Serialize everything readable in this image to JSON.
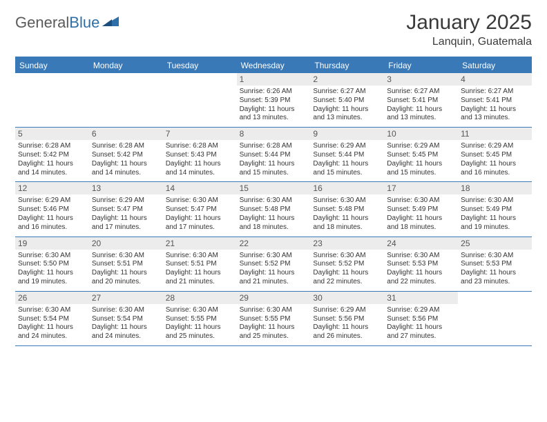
{
  "logo": {
    "word1": "General",
    "word2": "Blue"
  },
  "title": "January 2025",
  "location": "Lanquin, Guatemala",
  "colors": {
    "header_bar": "#3a79b7",
    "daynum_bg": "#ececec",
    "text": "#333333",
    "logo_gray": "#5a5a5a",
    "logo_blue": "#2f6fa8"
  },
  "dow": [
    "Sunday",
    "Monday",
    "Tuesday",
    "Wednesday",
    "Thursday",
    "Friday",
    "Saturday"
  ],
  "weeks": [
    [
      {
        "n": "",
        "sr": "",
        "ss": "",
        "dl": ""
      },
      {
        "n": "",
        "sr": "",
        "ss": "",
        "dl": ""
      },
      {
        "n": "",
        "sr": "",
        "ss": "",
        "dl": ""
      },
      {
        "n": "1",
        "sr": "Sunrise: 6:26 AM",
        "ss": "Sunset: 5:39 PM",
        "dl": "Daylight: 11 hours and 13 minutes."
      },
      {
        "n": "2",
        "sr": "Sunrise: 6:27 AM",
        "ss": "Sunset: 5:40 PM",
        "dl": "Daylight: 11 hours and 13 minutes."
      },
      {
        "n": "3",
        "sr": "Sunrise: 6:27 AM",
        "ss": "Sunset: 5:41 PM",
        "dl": "Daylight: 11 hours and 13 minutes."
      },
      {
        "n": "4",
        "sr": "Sunrise: 6:27 AM",
        "ss": "Sunset: 5:41 PM",
        "dl": "Daylight: 11 hours and 13 minutes."
      }
    ],
    [
      {
        "n": "5",
        "sr": "Sunrise: 6:28 AM",
        "ss": "Sunset: 5:42 PM",
        "dl": "Daylight: 11 hours and 14 minutes."
      },
      {
        "n": "6",
        "sr": "Sunrise: 6:28 AM",
        "ss": "Sunset: 5:42 PM",
        "dl": "Daylight: 11 hours and 14 minutes."
      },
      {
        "n": "7",
        "sr": "Sunrise: 6:28 AM",
        "ss": "Sunset: 5:43 PM",
        "dl": "Daylight: 11 hours and 14 minutes."
      },
      {
        "n": "8",
        "sr": "Sunrise: 6:28 AM",
        "ss": "Sunset: 5:44 PM",
        "dl": "Daylight: 11 hours and 15 minutes."
      },
      {
        "n": "9",
        "sr": "Sunrise: 6:29 AM",
        "ss": "Sunset: 5:44 PM",
        "dl": "Daylight: 11 hours and 15 minutes."
      },
      {
        "n": "10",
        "sr": "Sunrise: 6:29 AM",
        "ss": "Sunset: 5:45 PM",
        "dl": "Daylight: 11 hours and 15 minutes."
      },
      {
        "n": "11",
        "sr": "Sunrise: 6:29 AM",
        "ss": "Sunset: 5:45 PM",
        "dl": "Daylight: 11 hours and 16 minutes."
      }
    ],
    [
      {
        "n": "12",
        "sr": "Sunrise: 6:29 AM",
        "ss": "Sunset: 5:46 PM",
        "dl": "Daylight: 11 hours and 16 minutes."
      },
      {
        "n": "13",
        "sr": "Sunrise: 6:29 AM",
        "ss": "Sunset: 5:47 PM",
        "dl": "Daylight: 11 hours and 17 minutes."
      },
      {
        "n": "14",
        "sr": "Sunrise: 6:30 AM",
        "ss": "Sunset: 5:47 PM",
        "dl": "Daylight: 11 hours and 17 minutes."
      },
      {
        "n": "15",
        "sr": "Sunrise: 6:30 AM",
        "ss": "Sunset: 5:48 PM",
        "dl": "Daylight: 11 hours and 18 minutes."
      },
      {
        "n": "16",
        "sr": "Sunrise: 6:30 AM",
        "ss": "Sunset: 5:48 PM",
        "dl": "Daylight: 11 hours and 18 minutes."
      },
      {
        "n": "17",
        "sr": "Sunrise: 6:30 AM",
        "ss": "Sunset: 5:49 PM",
        "dl": "Daylight: 11 hours and 18 minutes."
      },
      {
        "n": "18",
        "sr": "Sunrise: 6:30 AM",
        "ss": "Sunset: 5:49 PM",
        "dl": "Daylight: 11 hours and 19 minutes."
      }
    ],
    [
      {
        "n": "19",
        "sr": "Sunrise: 6:30 AM",
        "ss": "Sunset: 5:50 PM",
        "dl": "Daylight: 11 hours and 19 minutes."
      },
      {
        "n": "20",
        "sr": "Sunrise: 6:30 AM",
        "ss": "Sunset: 5:51 PM",
        "dl": "Daylight: 11 hours and 20 minutes."
      },
      {
        "n": "21",
        "sr": "Sunrise: 6:30 AM",
        "ss": "Sunset: 5:51 PM",
        "dl": "Daylight: 11 hours and 21 minutes."
      },
      {
        "n": "22",
        "sr": "Sunrise: 6:30 AM",
        "ss": "Sunset: 5:52 PM",
        "dl": "Daylight: 11 hours and 21 minutes."
      },
      {
        "n": "23",
        "sr": "Sunrise: 6:30 AM",
        "ss": "Sunset: 5:52 PM",
        "dl": "Daylight: 11 hours and 22 minutes."
      },
      {
        "n": "24",
        "sr": "Sunrise: 6:30 AM",
        "ss": "Sunset: 5:53 PM",
        "dl": "Daylight: 11 hours and 22 minutes."
      },
      {
        "n": "25",
        "sr": "Sunrise: 6:30 AM",
        "ss": "Sunset: 5:53 PM",
        "dl": "Daylight: 11 hours and 23 minutes."
      }
    ],
    [
      {
        "n": "26",
        "sr": "Sunrise: 6:30 AM",
        "ss": "Sunset: 5:54 PM",
        "dl": "Daylight: 11 hours and 24 minutes."
      },
      {
        "n": "27",
        "sr": "Sunrise: 6:30 AM",
        "ss": "Sunset: 5:54 PM",
        "dl": "Daylight: 11 hours and 24 minutes."
      },
      {
        "n": "28",
        "sr": "Sunrise: 6:30 AM",
        "ss": "Sunset: 5:55 PM",
        "dl": "Daylight: 11 hours and 25 minutes."
      },
      {
        "n": "29",
        "sr": "Sunrise: 6:30 AM",
        "ss": "Sunset: 5:55 PM",
        "dl": "Daylight: 11 hours and 25 minutes."
      },
      {
        "n": "30",
        "sr": "Sunrise: 6:29 AM",
        "ss": "Sunset: 5:56 PM",
        "dl": "Daylight: 11 hours and 26 minutes."
      },
      {
        "n": "31",
        "sr": "Sunrise: 6:29 AM",
        "ss": "Sunset: 5:56 PM",
        "dl": "Daylight: 11 hours and 27 minutes."
      },
      {
        "n": "",
        "sr": "",
        "ss": "",
        "dl": ""
      }
    ]
  ]
}
